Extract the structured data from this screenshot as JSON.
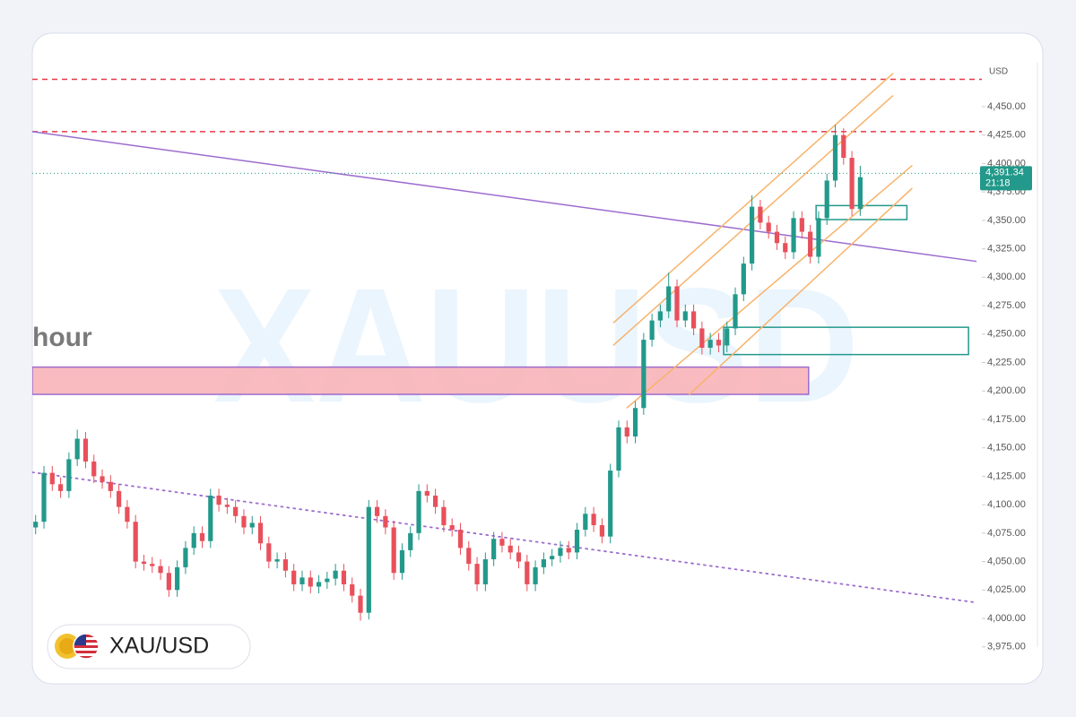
{
  "chart_data": {
    "type": "candlestick",
    "symbol_label": "XAU/USD",
    "watermark": "XAUUSD",
    "timeframe_label": "hour",
    "axis_unit": "USD",
    "up_color": "#22998a",
    "down_color": "#e8505b",
    "ylim": [
      3974.8,
      4494.9
    ],
    "xlim": [
      -0.4,
      113.6
    ],
    "yticks": [
      {
        "value": 3975,
        "label": "3,975.00"
      },
      {
        "value": 4000,
        "label": "4,000.00"
      },
      {
        "value": 4025,
        "label": "4,025.00"
      },
      {
        "value": 4050,
        "label": "4,050.00"
      },
      {
        "value": 4075,
        "label": "4,075.00"
      },
      {
        "value": 4100,
        "label": "4,100.00"
      },
      {
        "value": 4125,
        "label": "4,125.00"
      },
      {
        "value": 4150,
        "label": "4,150.00"
      },
      {
        "value": 4175,
        "label": "4,175.00"
      },
      {
        "value": 4200,
        "label": "4,200.00"
      },
      {
        "value": 4225,
        "label": "4,225.00"
      },
      {
        "value": 4250,
        "label": "4,250.00"
      },
      {
        "value": 4275,
        "label": "4,275.00"
      },
      {
        "value": 4300,
        "label": "4,300.00"
      },
      {
        "value": 4325,
        "label": "4,325.00"
      },
      {
        "value": 4350,
        "label": "4,350.00"
      },
      {
        "value": 4375,
        "label": "4,375.00"
      },
      {
        "value": 4400,
        "label": "4,400.00"
      },
      {
        "value": 4425,
        "label": "4,425.00"
      },
      {
        "value": 4450,
        "label": "4,450.00"
      }
    ],
    "open": [
      4080,
      4085,
      4128,
      4118,
      4112,
      4140,
      4158,
      4138,
      4125,
      4120,
      4112,
      4098,
      4085,
      4050,
      4048,
      4046,
      4040,
      4025,
      4045,
      4062,
      4075,
      4068,
      4108,
      4100,
      4098,
      4090,
      4080,
      4084,
      4066,
      4050,
      4052,
      4042,
      4030,
      4036,
      4028,
      4032,
      4035,
      4042,
      4030,
      4020,
      4005,
      4098,
      4090,
      4080,
      4040,
      4060,
      4075,
      4112,
      4108,
      4098,
      4082,
      4078,
      4062,
      4048,
      4030,
      4052,
      4070,
      4064,
      4058,
      4050,
      4030,
      4045,
      4052,
      4055,
      4062,
      4058,
      4078,
      4092,
      4082,
      4072,
      4130,
      4168,
      4160,
      4185,
      4245,
      4262,
      4270,
      4292,
      4262,
      4270,
      4255,
      4238,
      4245,
      4240,
      4255,
      4285,
      4312,
      4362,
      4348,
      4340,
      4330,
      4322,
      4352,
      4340,
      4318,
      4352,
      4385,
      4425,
      4405,
      4360
    ],
    "high": [
      4091,
      4134,
      4134,
      4124,
      4146,
      4166,
      4164,
      4144,
      4131,
      4126,
      4118,
      4104,
      4091,
      4056,
      4054,
      4052,
      4046,
      4051,
      4068,
      4081,
      4081,
      4114,
      4114,
      4106,
      4104,
      4096,
      4090,
      4090,
      4072,
      4058,
      4058,
      4048,
      4042,
      4042,
      4038,
      4041,
      4048,
      4048,
      4036,
      4026,
      4104,
      4104,
      4096,
      4086,
      4066,
      4081,
      4118,
      4118,
      4114,
      4104,
      4088,
      4084,
      4068,
      4054,
      4058,
      4076,
      4076,
      4070,
      4064,
      4056,
      4051,
      4058,
      4061,
      4068,
      4068,
      4084,
      4098,
      4098,
      4088,
      4136,
      4174,
      4174,
      4191,
      4251,
      4268,
      4276,
      4304,
      4298,
      4276,
      4276,
      4261,
      4251,
      4251,
      4261,
      4291,
      4318,
      4372,
      4368,
      4354,
      4346,
      4336,
      4358,
      4358,
      4346,
      4358,
      4391,
      4434,
      4431,
      4411,
      4398
    ],
    "low": [
      4074,
      4079,
      4112,
      4106,
      4106,
      4134,
      4132,
      4119,
      4114,
      4106,
      4092,
      4079,
      4044,
      4042,
      4040,
      4034,
      4019,
      4019,
      4039,
      4056,
      4062,
      4062,
      4094,
      4092,
      4084,
      4074,
      4074,
      4060,
      4044,
      4044,
      4036,
      4024,
      4024,
      4022,
      4022,
      4026,
      4029,
      4024,
      4014,
      3998,
      3999,
      4084,
      4074,
      4034,
      4034,
      4054,
      4069,
      4102,
      4092,
      4076,
      4072,
      4056,
      4042,
      4024,
      4024,
      4046,
      4058,
      4052,
      4044,
      4024,
      4024,
      4039,
      4046,
      4049,
      4052,
      4052,
      4072,
      4076,
      4066,
      4066,
      4124,
      4154,
      4154,
      4179,
      4239,
      4256,
      4264,
      4256,
      4256,
      4249,
      4232,
      4232,
      4234,
      4234,
      4249,
      4279,
      4306,
      4342,
      4334,
      4324,
      4316,
      4316,
      4334,
      4312,
      4312,
      4346,
      4379,
      4399,
      4354,
      4354
    ],
    "close": [
      4085,
      4128,
      4118,
      4112,
      4140,
      4158,
      4138,
      4125,
      4120,
      4112,
      4098,
      4085,
      4050,
      4048,
      4046,
      4040,
      4025,
      4045,
      4062,
      4075,
      4068,
      4108,
      4100,
      4098,
      4090,
      4080,
      4084,
      4066,
      4050,
      4052,
      4042,
      4030,
      4036,
      4028,
      4032,
      4035,
      4042,
      4030,
      4020,
      4005,
      4098,
      4090,
      4080,
      4040,
      4060,
      4075,
      4112,
      4108,
      4098,
      4082,
      4078,
      4062,
      4048,
      4030,
      4052,
      4070,
      4064,
      4058,
      4050,
      4030,
      4045,
      4052,
      4055,
      4062,
      4058,
      4078,
      4092,
      4082,
      4072,
      4130,
      4168,
      4160,
      4185,
      4245,
      4262,
      4270,
      4292,
      4262,
      4270,
      4255,
      4238,
      4245,
      4240,
      4255,
      4285,
      4312,
      4362,
      4348,
      4340,
      4330,
      4322,
      4352,
      4340,
      4318,
      4352,
      4385,
      4425,
      4405,
      4360,
      4388
    ],
    "last_price": {
      "value": 4391.34,
      "label": "4,391.34",
      "countdown": "21:18",
      "color": "#22998a"
    },
    "horizontal_lines": [
      {
        "value": 4474,
        "color": "#e53945",
        "style": "dashed"
      },
      {
        "value": 4428,
        "color": "#e53945",
        "style": "dashed"
      }
    ],
    "trendlines": [
      {
        "x": [
          -0.4,
          112.9
        ],
        "values": [
          4428,
          4314
        ],
        "color": "#9c6ccf",
        "style": "solid"
      },
      {
        "x": [
          -0.4,
          112.9
        ],
        "values": [
          4128.5,
          4014
        ],
        "color": "#9c6ccf",
        "style": "dotted"
      },
      {
        "x": [
          69.4,
          102.9
        ],
        "values": [
          4260,
          4479
        ],
        "color": "#f7b36b",
        "style": "solid"
      },
      {
        "x": [
          69.4,
          102.9
        ],
        "values": [
          4240.4,
          4459.5
        ],
        "color": "#f7b36b",
        "style": "solid"
      },
      {
        "x": [
          71,
          105.2
        ],
        "values": [
          4185.2,
          4398
        ],
        "color": "#f7b36b",
        "style": "solid"
      },
      {
        "x": [
          78.5,
          105.2
        ],
        "values": [
          4197,
          4378
        ],
        "color": "#f7b36b",
        "style": "solid"
      }
    ],
    "zones": [
      {
        "x": [
          -0.4,
          92.8
        ],
        "values": [
          4197,
          4221
        ],
        "fill": "#f8b4b8",
        "stroke": "#9c6ccf"
      },
      {
        "x": [
          93.7,
          104.6
        ],
        "values": [
          4350.7,
          4363
        ],
        "fill": "none",
        "stroke": "#22998a"
      },
      {
        "x": [
          82.6,
          112
        ],
        "values": [
          4232,
          4256
        ],
        "fill": "none",
        "stroke": "#22998a"
      }
    ]
  }
}
